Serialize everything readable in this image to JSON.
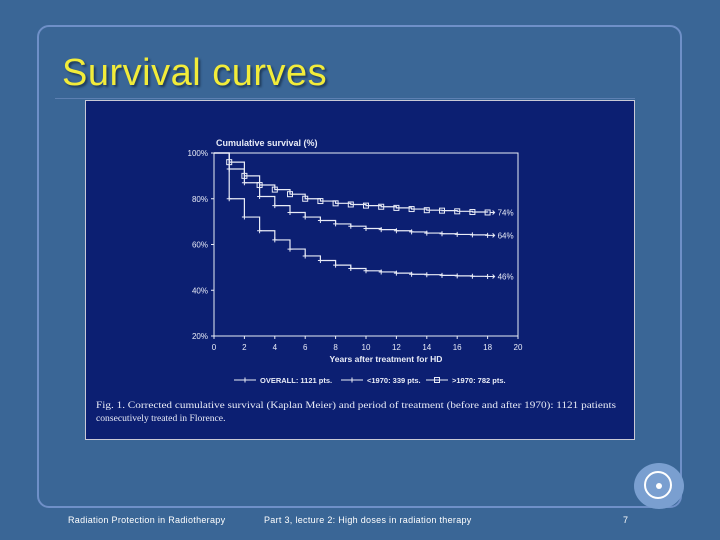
{
  "slide": {
    "title": "Survival curves",
    "footer_left": "Radiation Protection in Radiotherapy",
    "footer_center": "Part 3, lecture 2: High doses in radiation therapy",
    "page_number": "7"
  },
  "colors": {
    "background": "#3a6696",
    "title": "#f2ec3a",
    "chart_background": "#0c1f72",
    "chart_ink": "#e9ecf7"
  },
  "chart_data": {
    "type": "line",
    "title": "Cumulative survival (%)",
    "xlabel": "Years after treatment for HD",
    "ylabel": "",
    "xlim": [
      0,
      20
    ],
    "ylim": [
      20,
      100
    ],
    "x_ticks": [
      "0",
      "2",
      "4",
      "6",
      "8",
      "10",
      "12",
      "14",
      "16",
      "18",
      "20"
    ],
    "y_ticks": [
      "20%",
      "40%",
      "60%",
      "80%",
      "100%"
    ],
    "grid": false,
    "series": [
      {
        "name": ">1970: 782 pts.",
        "marker": "square",
        "end_label": "74%",
        "x": [
          0,
          1,
          2,
          3,
          4,
          5,
          6,
          7,
          8,
          9,
          10,
          11,
          12,
          13,
          14,
          15,
          16,
          17,
          18
        ],
        "y": [
          100,
          96,
          90,
          86,
          84,
          82,
          80,
          79,
          78,
          77.5,
          77,
          76.5,
          76,
          75.5,
          75,
          74.8,
          74.5,
          74.2,
          74
        ]
      },
      {
        "name": "OVERALL: 1121 pts.",
        "marker": "cross",
        "end_label": "64%",
        "x": [
          0,
          1,
          2,
          3,
          4,
          5,
          6,
          7,
          8,
          9,
          10,
          11,
          12,
          13,
          14,
          15,
          16,
          17,
          18
        ],
        "y": [
          100,
          93,
          87,
          81,
          77,
          74,
          72,
          70.5,
          69,
          68,
          67,
          66.5,
          66,
          65.5,
          65,
          64.7,
          64.4,
          64.2,
          64
        ]
      },
      {
        "name": "<1970: 339 pts.",
        "marker": "plus",
        "end_label": "46%",
        "x": [
          0,
          1,
          2,
          3,
          4,
          5,
          6,
          7,
          8,
          9,
          10,
          11,
          12,
          13,
          14,
          15,
          16,
          17,
          18
        ],
        "y": [
          100,
          80,
          72,
          66,
          62,
          58,
          55,
          53,
          51,
          49.5,
          48.5,
          48,
          47.5,
          47,
          46.8,
          46.5,
          46.3,
          46.1,
          46
        ]
      }
    ],
    "caption_line1": "Fig. 1. Corrected cumulative survival (Kaplan Meier) and period of treatment (before and after 1970): 1121 patients",
    "caption_line2": "consecutively treated in Florence."
  }
}
